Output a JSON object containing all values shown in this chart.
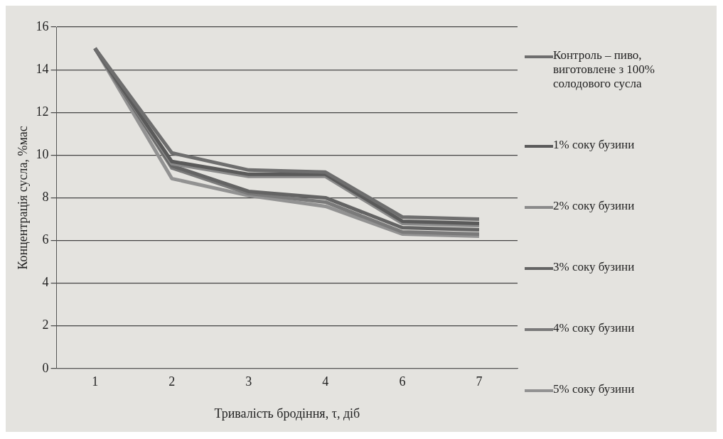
{
  "chart_data": {
    "type": "line",
    "xlabel": "Тривалість бродіння, τ, діб",
    "ylabel": "Концентрація сусла, %мас",
    "categories": [
      "1",
      "2",
      "3",
      "4",
      "6",
      "7"
    ],
    "series": [
      {
        "name": "Контроль – пиво, виготовлене з 100% солодового сусла",
        "color": "#6e6e6e",
        "values": [
          15,
          10.1,
          9.3,
          9.2,
          7.1,
          7.0
        ]
      },
      {
        "name": "1% соку бузини",
        "color": "#5a5a5a",
        "values": [
          15,
          9.7,
          9.1,
          9.1,
          6.9,
          6.8
        ]
      },
      {
        "name": "2% соку бузини",
        "color": "#8a8a8a",
        "values": [
          15,
          9.6,
          9.0,
          9.0,
          6.8,
          6.7
        ]
      },
      {
        "name": "3% соку бузини",
        "color": "#646464",
        "values": [
          15,
          9.5,
          8.3,
          8.0,
          6.6,
          6.5
        ]
      },
      {
        "name": "4% соку бузини",
        "color": "#7a7a7a",
        "values": [
          15,
          9.4,
          8.2,
          7.8,
          6.4,
          6.3
        ]
      },
      {
        "name": "5% соку бузини",
        "color": "#929292",
        "values": [
          15,
          8.9,
          8.1,
          7.6,
          6.3,
          6.2
        ]
      }
    ],
    "ylim": [
      0,
      16
    ],
    "yticks": [
      0,
      2,
      4,
      6,
      8,
      10,
      12,
      14,
      16
    ],
    "grid": "y",
    "legend": "right",
    "marker": "none",
    "line_style": "solid"
  }
}
